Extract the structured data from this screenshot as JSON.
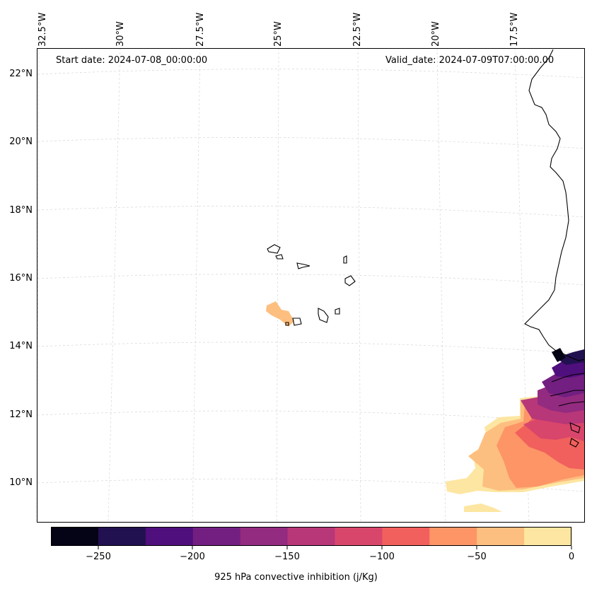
{
  "header": {
    "start_date": "Start date: 2024-07-08_00:00:00",
    "valid_date": "Valid_date: 2024-07-09T07:00:00.00"
  },
  "axes": {
    "lon_labels": [
      "32.5°W",
      "30°W",
      "27.5°W",
      "25°W",
      "22.5°W",
      "20°W",
      "17.5°W"
    ],
    "lat_labels": [
      "22°N",
      "20°N",
      "18°N",
      "16°N",
      "14°N",
      "12°N",
      "10°N"
    ]
  },
  "colorbar": {
    "label": "925 hPa convective inhibition (j/Kg)",
    "tick_labels": [
      "−250",
      "−200",
      "−150",
      "−100",
      "−50",
      "0"
    ],
    "colors": [
      "#050416",
      "#221150",
      "#4f0f7c",
      "#721f81",
      "#932b80",
      "#b73779",
      "#d9466b",
      "#f1605d",
      "#fd9567",
      "#fdbf7f",
      "#fde6a2"
    ]
  },
  "map_style": {
    "coastline_color": "#000000",
    "gridline_color": "#cccccc"
  }
}
